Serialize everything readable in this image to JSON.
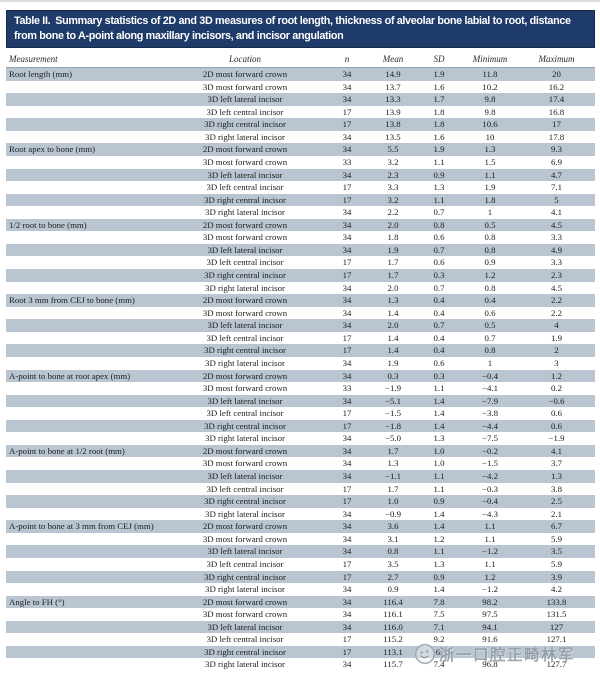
{
  "title": {
    "label": "Table II.",
    "text": "Summary statistics of 2D and 3D measures of root length, thickness of alveolar bone labial to root, distance from bone to A-point along maxillary incisors, and incisor angulation"
  },
  "table": {
    "columns": [
      "Measurement",
      "Location",
      "n",
      "Mean",
      "SD",
      "Minimum",
      "Maximum"
    ],
    "groups": [
      {
        "measurement": "Root length (mm)",
        "rows": [
          [
            "2D most forward crown",
            "34",
            "14.9",
            "1.9",
            "11.8",
            "20"
          ],
          [
            "3D most forward crown",
            "34",
            "13.7",
            "1.6",
            "10.2",
            "16.2"
          ],
          [
            "3D left lateral incisor",
            "34",
            "13.3",
            "1.7",
            "9.8",
            "17.4"
          ],
          [
            "3D left central incisor",
            "17",
            "13.9",
            "1.8",
            "9.8",
            "16.8"
          ],
          [
            "3D right central incisor",
            "17",
            "13.8",
            "1.8",
            "10.6",
            "17"
          ],
          [
            "3D right lateral incisor",
            "34",
            "13.5",
            "1.6",
            "10",
            "17.8"
          ]
        ]
      },
      {
        "measurement": "Root apex to bone (mm)",
        "rows": [
          [
            "2D most forward crown",
            "34",
            "5.5",
            "1.9",
            "1.3",
            "9.3"
          ],
          [
            "3D most forward crown",
            "33",
            "3.2",
            "1.1",
            "1.5",
            "6.9"
          ],
          [
            "3D left lateral incisor",
            "34",
            "2.3",
            "0.9",
            "1.1",
            "4.7"
          ],
          [
            "3D left central incisor",
            "17",
            "3.3",
            "1.3",
            "1.9",
            "7.1"
          ],
          [
            "3D right central incisor",
            "17",
            "3.2",
            "1.1",
            "1.8",
            "5"
          ],
          [
            "3D right lateral incisor",
            "34",
            "2.2",
            "0.7",
            "1",
            "4.1"
          ]
        ]
      },
      {
        "measurement": "1/2 root to bone (mm)",
        "rows": [
          [
            "2D most forward crown",
            "34",
            "2.0",
            "0.8",
            "0.5",
            "4.5"
          ],
          [
            "3D most forward crown",
            "34",
            "1.8",
            "0.6",
            "0.8",
            "3.3"
          ],
          [
            "3D left lateral incisor",
            "34",
            "1.9",
            "0.7",
            "0.8",
            "4.9"
          ],
          [
            "3D left central incisor",
            "17",
            "1.7",
            "0.6",
            "0.9",
            "3.3"
          ],
          [
            "3D right central incisor",
            "17",
            "1.7",
            "0.3",
            "1.2",
            "2.3"
          ],
          [
            "3D right lateral incisor",
            "34",
            "2.0",
            "0.7",
            "0.8",
            "4.5"
          ]
        ]
      },
      {
        "measurement": "Root 3 mm from CEJ to bone (mm)",
        "rows": [
          [
            "2D most forward crown",
            "34",
            "1.3",
            "0.4",
            "0.4",
            "2.2"
          ],
          [
            "3D most forward crown",
            "34",
            "1.4",
            "0.4",
            "0.6",
            "2.2"
          ],
          [
            "3D left lateral incisor",
            "34",
            "2.0",
            "0.7",
            "0.5",
            "4"
          ],
          [
            "3D left central incisor",
            "17",
            "1.4",
            "0.4",
            "0.7",
            "1.9"
          ],
          [
            "3D right central incisor",
            "17",
            "1.4",
            "0.4",
            "0.8",
            "2"
          ],
          [
            "3D right lateral incisor",
            "34",
            "1.9",
            "0.6",
            "1",
            "3"
          ]
        ]
      },
      {
        "measurement": "A-point to bone at root apex (mm)",
        "rows": [
          [
            "2D most forward crown",
            "34",
            "0.3",
            "0.3",
            "−0.4",
            "1.2"
          ],
          [
            "3D most forward crown",
            "33",
            "−1.9",
            "1.1",
            "−4.1",
            "0.2"
          ],
          [
            "3D left lateral incisor",
            "34",
            "−5.1",
            "1.4",
            "−7.9",
            "−0.6"
          ],
          [
            "3D left central incisor",
            "17",
            "−1.5",
            "1.4",
            "−3.8",
            "0.6"
          ],
          [
            "3D right central incisor",
            "17",
            "−1.8",
            "1.4",
            "−4.4",
            "0.6"
          ],
          [
            "3D right lateral incisor",
            "34",
            "−5.0",
            "1.3",
            "−7.5",
            "−1.9"
          ]
        ]
      },
      {
        "measurement": "A-point to bone at 1/2 root (mm)",
        "rows": [
          [
            "2D most forward crown",
            "34",
            "1.7",
            "1.0",
            "−0.2",
            "4.1"
          ],
          [
            "3D most forward crown",
            "34",
            "1.3",
            "1.0",
            "−1.5",
            "3.7"
          ],
          [
            "3D left lateral incisor",
            "34",
            "−1.1",
            "1.1",
            "−4.2",
            "1.3"
          ],
          [
            "3D left central incisor",
            "17",
            "1.7",
            "1.1",
            "−0.3",
            "3.8"
          ],
          [
            "3D right central incisor",
            "17",
            "1.0",
            "0.9",
            "−0.4",
            "2.5"
          ],
          [
            "3D right lateral incisor",
            "34",
            "−0.9",
            "1.4",
            "−4.3",
            "2.1"
          ]
        ]
      },
      {
        "measurement": "A-point to bone at 3 mm from CEJ (mm)",
        "rows": [
          [
            "2D most forward crown",
            "34",
            "3.6",
            "1.4",
            "1.1",
            "6.7"
          ],
          [
            "3D most forward crown",
            "34",
            "3.1",
            "1.2",
            "1.1",
            "5.9"
          ],
          [
            "3D left lateral incisor",
            "34",
            "0.8",
            "1.1",
            "−1.2",
            "3.5"
          ],
          [
            "3D left central incisor",
            "17",
            "3.5",
            "1.3",
            "1.1",
            "5.9"
          ],
          [
            "3D right central incisor",
            "17",
            "2.7",
            "0.9",
            "1.2",
            "3.9"
          ],
          [
            "3D right lateral incisor",
            "34",
            "0.9",
            "1.4",
            "−1.2",
            "4.2"
          ]
        ]
      },
      {
        "measurement": "Angle to FH (°)",
        "rows": [
          [
            "2D most forward crown",
            "34",
            "116.4",
            "7.8",
            "98.2",
            "133.8"
          ],
          [
            "3D most forward crown",
            "34",
            "116.1",
            "7.5",
            "97.5",
            "131.5"
          ],
          [
            "3D left lateral incisor",
            "34",
            "116.0",
            "7.1",
            "94.1",
            "127"
          ],
          [
            "3D left central incisor",
            "17",
            "115.2",
            "9.2",
            "91.6",
            "127.1"
          ],
          [
            "3D right central incisor",
            "17",
            "113.1",
            "6.",
            "",
            ""
          ],
          [
            "3D right lateral incisor",
            "34",
            "115.7",
            "7.4",
            "96.8",
            "127.7"
          ]
        ]
      }
    ]
  },
  "watermark": {
    "text": "浙一口腔正畸林军"
  },
  "colors": {
    "header_bar": "#1f3b69",
    "row_shade": "#b9c6d2",
    "watermark_gray": "#909aa4"
  }
}
